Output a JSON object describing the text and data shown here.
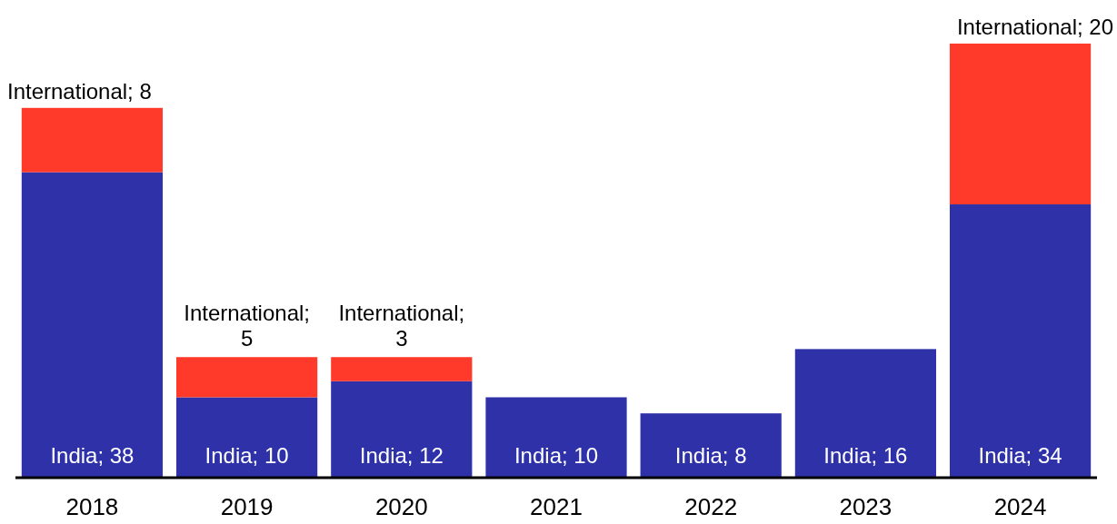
{
  "chart_data": {
    "type": "bar",
    "stacked": true,
    "categories": [
      "2018",
      "2019",
      "2020",
      "2021",
      "2022",
      "2023",
      "2024"
    ],
    "series": [
      {
        "color": "#2e31a8",
        "values": [
          38,
          10,
          12,
          10,
          8,
          16,
          34
        ],
        "value_labels": [
          "India; 38",
          "India; 10",
          "India; 12",
          "India; 10",
          "India; 8",
          "India; 16",
          "India; 34"
        ]
      },
      {
        "color": "#ff3a2a",
        "values": [
          8,
          5,
          3,
          null,
          null,
          null,
          20
        ],
        "value_labels": [
          "International; 8",
          "International; 5",
          "International; 3",
          null,
          null,
          null,
          "International; 20"
        ]
      }
    ]
  }
}
